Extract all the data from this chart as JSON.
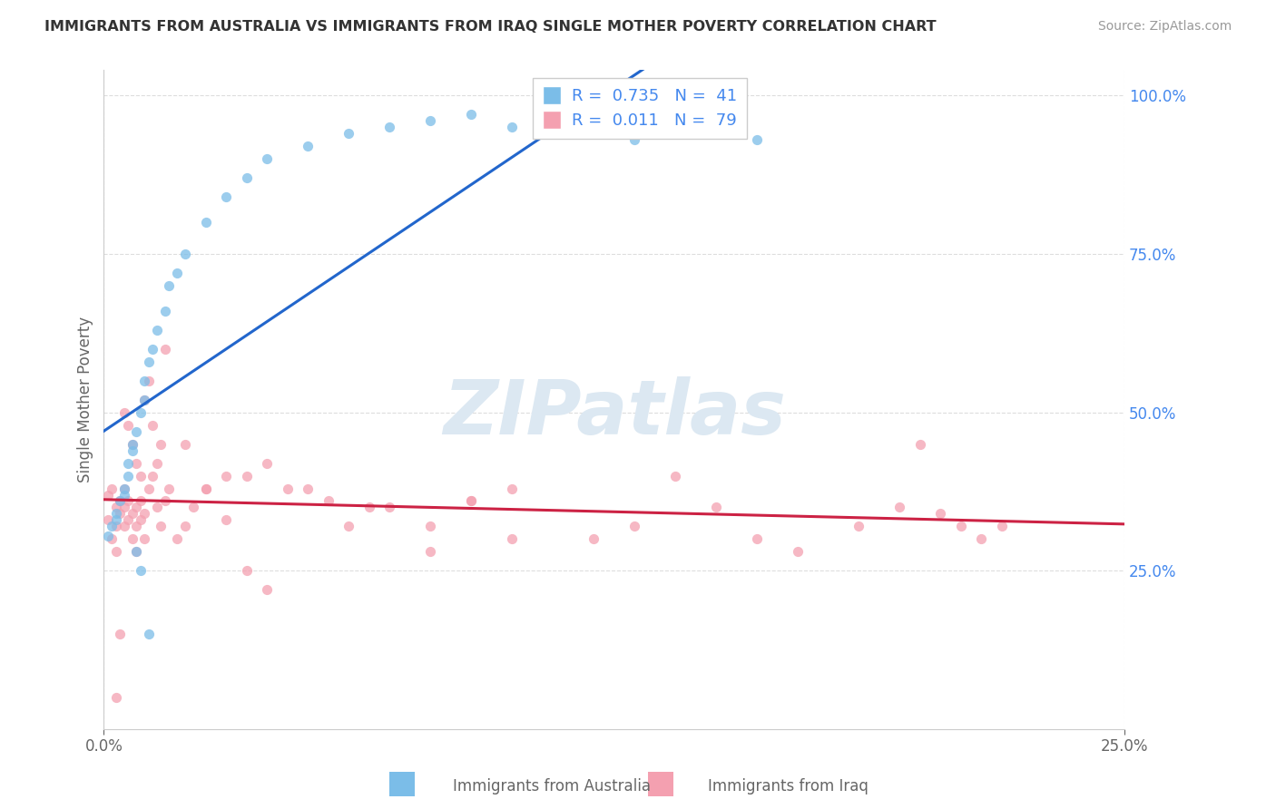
{
  "title": "IMMIGRANTS FROM AUSTRALIA VS IMMIGRANTS FROM IRAQ SINGLE MOTHER POVERTY CORRELATION CHART",
  "source": "Source: ZipAtlas.com",
  "ylabel": "Single Mother Poverty",
  "legend_blue_R": "0.735",
  "legend_blue_N": "41",
  "legend_pink_R": "0.011",
  "legend_pink_N": "79",
  "legend_blue_label": "Immigrants from Australia",
  "legend_pink_label": "Immigrants from Iraq",
  "blue_color": "#7bbde8",
  "pink_color": "#f4a0b0",
  "trend_blue_color": "#2266cc",
  "trend_pink_color": "#cc2244",
  "watermark_color": "#dce8f2",
  "background_color": "#ffffff",
  "tick_color_right": "#4488ee",
  "tick_color_bottom": "#666666",
  "xmin": 0.0,
  "xmax": 0.25,
  "ymin": 0.0,
  "ymax": 1.04,
  "australia_x": [
    0.001,
    0.002,
    0.003,
    0.003,
    0.004,
    0.005,
    0.005,
    0.006,
    0.006,
    0.007,
    0.007,
    0.008,
    0.009,
    0.01,
    0.01,
    0.011,
    0.012,
    0.013,
    0.015,
    0.016,
    0.018,
    0.02,
    0.025,
    0.03,
    0.035,
    0.04,
    0.05,
    0.06,
    0.07,
    0.08,
    0.09,
    0.1,
    0.11,
    0.12,
    0.13,
    0.14,
    0.15,
    0.16,
    0.008,
    0.009,
    0.011
  ],
  "australia_y": [
    0.305,
    0.32,
    0.34,
    0.33,
    0.36,
    0.38,
    0.37,
    0.4,
    0.42,
    0.44,
    0.45,
    0.47,
    0.5,
    0.52,
    0.55,
    0.58,
    0.6,
    0.63,
    0.66,
    0.7,
    0.72,
    0.75,
    0.8,
    0.84,
    0.87,
    0.9,
    0.92,
    0.94,
    0.95,
    0.96,
    0.97,
    0.95,
    0.94,
    0.96,
    0.93,
    0.94,
    0.97,
    0.93,
    0.28,
    0.25,
    0.15
  ],
  "iraq_x": [
    0.001,
    0.001,
    0.002,
    0.002,
    0.003,
    0.003,
    0.003,
    0.004,
    0.004,
    0.005,
    0.005,
    0.005,
    0.006,
    0.006,
    0.007,
    0.007,
    0.008,
    0.008,
    0.008,
    0.009,
    0.009,
    0.01,
    0.01,
    0.011,
    0.012,
    0.013,
    0.014,
    0.015,
    0.016,
    0.018,
    0.02,
    0.022,
    0.025,
    0.03,
    0.035,
    0.04,
    0.045,
    0.055,
    0.065,
    0.08,
    0.09,
    0.1,
    0.12,
    0.13,
    0.14,
    0.15,
    0.16,
    0.17,
    0.185,
    0.195,
    0.2,
    0.205,
    0.21,
    0.215,
    0.22,
    0.005,
    0.006,
    0.007,
    0.008,
    0.009,
    0.01,
    0.011,
    0.012,
    0.013,
    0.014,
    0.015,
    0.02,
    0.025,
    0.03,
    0.035,
    0.04,
    0.05,
    0.06,
    0.07,
    0.08,
    0.09,
    0.1,
    0.004,
    0.003
  ],
  "iraq_y": [
    0.37,
    0.33,
    0.38,
    0.3,
    0.35,
    0.28,
    0.32,
    0.34,
    0.36,
    0.38,
    0.35,
    0.32,
    0.36,
    0.33,
    0.34,
    0.3,
    0.32,
    0.35,
    0.28,
    0.33,
    0.36,
    0.3,
    0.34,
    0.38,
    0.4,
    0.35,
    0.32,
    0.36,
    0.38,
    0.3,
    0.32,
    0.35,
    0.38,
    0.33,
    0.4,
    0.42,
    0.38,
    0.36,
    0.35,
    0.32,
    0.36,
    0.38,
    0.3,
    0.32,
    0.4,
    0.35,
    0.3,
    0.28,
    0.32,
    0.35,
    0.45,
    0.34,
    0.32,
    0.3,
    0.32,
    0.5,
    0.48,
    0.45,
    0.42,
    0.4,
    0.52,
    0.55,
    0.48,
    0.42,
    0.45,
    0.6,
    0.45,
    0.38,
    0.4,
    0.25,
    0.22,
    0.38,
    0.32,
    0.35,
    0.28,
    0.36,
    0.3,
    0.15,
    0.05
  ]
}
